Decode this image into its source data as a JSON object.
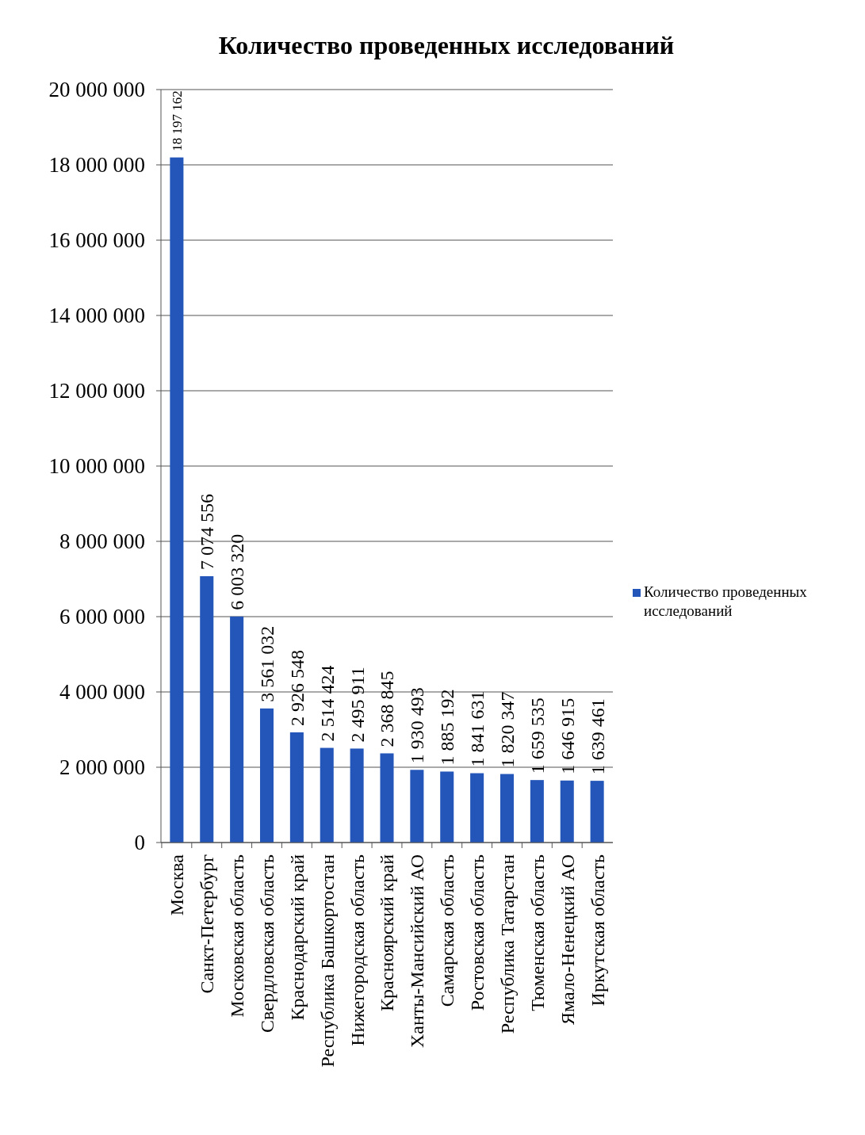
{
  "chart_data": {
    "type": "bar",
    "title": "Количество проведенных исследований",
    "categories": [
      "Москва",
      "Санкт-Петербург",
      "Московская область",
      "Свердловская область",
      "Краснодарский край",
      "Республика Башкортостан",
      "Нижегородская область",
      "Красноярский край",
      "Ханты-Мансийский АО",
      "Самарская область",
      "Ростовская область",
      "Республика Татарстан",
      "Тюменская область",
      "Ямало-Ненецкий АО",
      "Иркутская область"
    ],
    "series": [
      {
        "name": "Количество проведенных исследований",
        "color": "#2356b8",
        "values": [
          18197162,
          7074556,
          6003320,
          3561032,
          2926548,
          2514424,
          2495911,
          2368845,
          1930493,
          1885192,
          1841631,
          1820347,
          1659535,
          1646915,
          1639461
        ]
      }
    ],
    "value_labels": [
      "18 197 162",
      "7 074 556",
      "6 003 320",
      "3 561 032",
      "2 926 548",
      "2 514 424",
      "2 495 911",
      "2 368 845",
      "1 930 493",
      "1 885 192",
      "1 841 631",
      "1 820 347",
      "1 659 535",
      "1 646 915",
      "1 639 461"
    ],
    "ylim": [
      0,
      20000000
    ],
    "yticks": [
      {
        "value": 0,
        "label": "0"
      },
      {
        "value": 2000000,
        "label": "2 000 000"
      },
      {
        "value": 4000000,
        "label": "4 000 000"
      },
      {
        "value": 6000000,
        "label": "6 000 000"
      },
      {
        "value": 8000000,
        "label": "8 000 000"
      },
      {
        "value": 10000000,
        "label": "10 000 000"
      },
      {
        "value": 12000000,
        "label": "12 000 000"
      },
      {
        "value": 14000000,
        "label": "14 000 000"
      },
      {
        "value": 16000000,
        "label": "16 000 000"
      },
      {
        "value": 18000000,
        "label": "18 000 000"
      },
      {
        "value": 20000000,
        "label": "20 000 000"
      }
    ],
    "grid": "y",
    "legend": "right"
  }
}
